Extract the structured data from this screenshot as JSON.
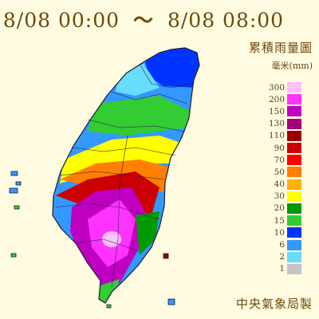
{
  "title": {
    "start": "8/08 00:00",
    "separator": "～",
    "end": "8/08 08:00"
  },
  "legend": {
    "title": "累積雨量圖",
    "unit": "毫米(mm)",
    "items": [
      {
        "label": "300",
        "color": "#ffc0ff"
      },
      {
        "label": "200",
        "color": "#ff33ff"
      },
      {
        "label": "150",
        "color": "#c000c0"
      },
      {
        "label": "130",
        "color": "#a0007a"
      },
      {
        "label": "110",
        "color": "#9a0000"
      },
      {
        "label": "90",
        "color": "#cc0000"
      },
      {
        "label": "70",
        "color": "#ff0000"
      },
      {
        "label": "50",
        "color": "#ff8000"
      },
      {
        "label": "40",
        "color": "#ffb000"
      },
      {
        "label": "30",
        "color": "#ffff00"
      },
      {
        "label": "20",
        "color": "#009900"
      },
      {
        "label": "15",
        "color": "#33cc33"
      },
      {
        "label": "10",
        "color": "#0033ff"
      },
      {
        "label": "6",
        "color": "#3399ff"
      },
      {
        "label": "2",
        "color": "#66ddff"
      },
      {
        "label": "1",
        "color": "#c4c4c4"
      }
    ]
  },
  "credit": "中央氣象局製"
}
